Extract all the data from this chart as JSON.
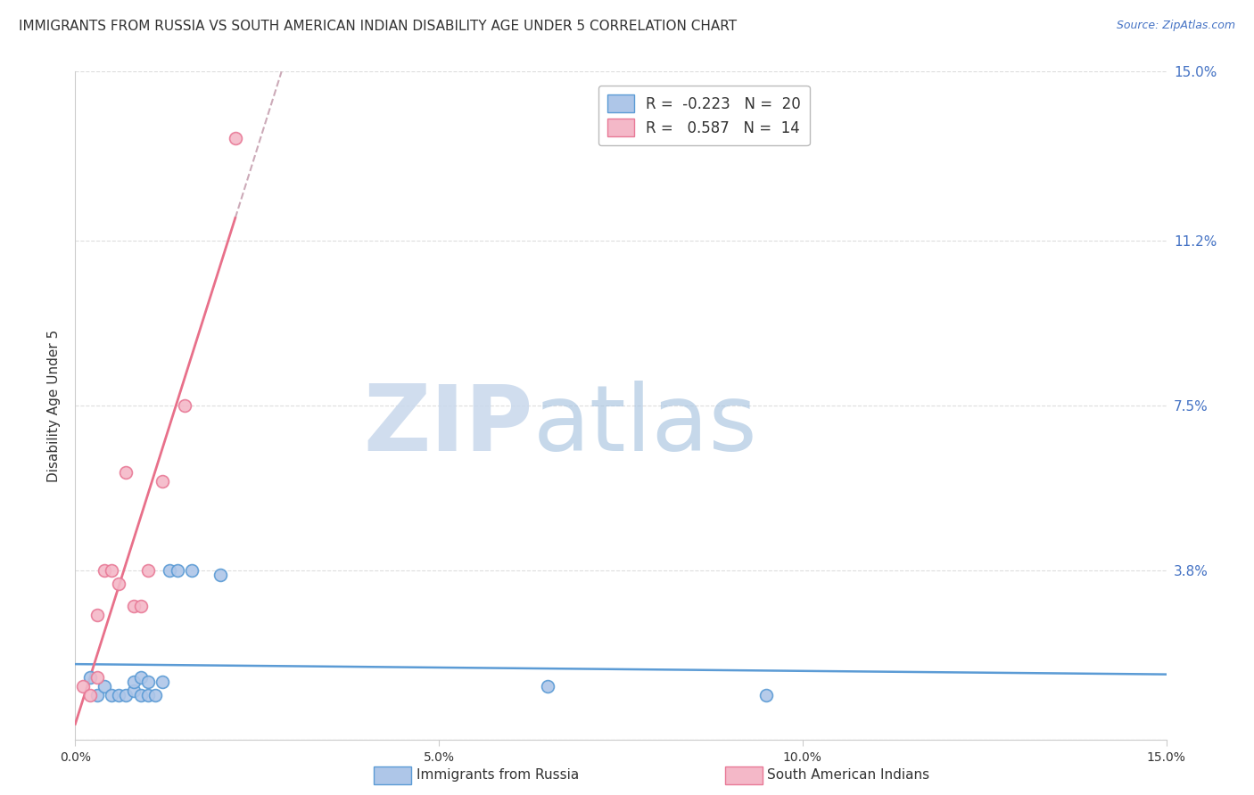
{
  "title": "IMMIGRANTS FROM RUSSIA VS SOUTH AMERICAN INDIAN DISABILITY AGE UNDER 5 CORRELATION CHART",
  "source": "Source: ZipAtlas.com",
  "ylabel": "Disability Age Under 5",
  "xlim": [
    0.0,
    0.15
  ],
  "ylim": [
    0.0,
    0.15
  ],
  "ytick_labels": [
    "",
    "3.8%",
    "7.5%",
    "11.2%",
    "15.0%"
  ],
  "ytick_values": [
    0.0,
    0.038,
    0.075,
    0.112,
    0.15
  ],
  "xtick_labels": [
    "0.0%",
    "",
    "",
    "",
    "",
    "5.0%",
    "",
    "",
    "",
    "",
    "10.0%",
    "",
    "",
    "",
    "",
    "15.0%"
  ],
  "xtick_positions": [
    0.0,
    0.01,
    0.02,
    0.03,
    0.04,
    0.05,
    0.06,
    0.07,
    0.08,
    0.09,
    0.1,
    0.11,
    0.12,
    0.13,
    0.14,
    0.15
  ],
  "russia_color": "#aec6e8",
  "russia_edge_color": "#5b9bd5",
  "sam_indian_color": "#f4b8c8",
  "sam_indian_edge_color": "#e87a97",
  "russia_R": -0.223,
  "russia_N": 20,
  "sam_indian_R": 0.587,
  "sam_indian_N": 14,
  "trendline_russia_color": "#5b9bd5",
  "trendline_sam_solid_color": "#e8708a",
  "trendline_sam_dashed_color": "#ccaab8",
  "russia_x": [
    0.002,
    0.003,
    0.004,
    0.005,
    0.006,
    0.007,
    0.008,
    0.008,
    0.009,
    0.009,
    0.01,
    0.01,
    0.011,
    0.012,
    0.013,
    0.014,
    0.016,
    0.02,
    0.065,
    0.095
  ],
  "russia_y": [
    0.014,
    0.01,
    0.012,
    0.01,
    0.01,
    0.01,
    0.011,
    0.013,
    0.01,
    0.014,
    0.01,
    0.013,
    0.01,
    0.013,
    0.038,
    0.038,
    0.038,
    0.037,
    0.012,
    0.01
  ],
  "sam_x": [
    0.001,
    0.002,
    0.003,
    0.003,
    0.004,
    0.005,
    0.006,
    0.007,
    0.008,
    0.009,
    0.01,
    0.012,
    0.015,
    0.022
  ],
  "sam_y": [
    0.012,
    0.01,
    0.014,
    0.028,
    0.038,
    0.038,
    0.035,
    0.06,
    0.03,
    0.03,
    0.038,
    0.058,
    0.075,
    0.135
  ],
  "background_color": "#ffffff",
  "grid_color": "#dddddd",
  "marker_size": 100,
  "legend_fontsize": 12,
  "title_fontsize": 11,
  "axis_label_fontsize": 11
}
